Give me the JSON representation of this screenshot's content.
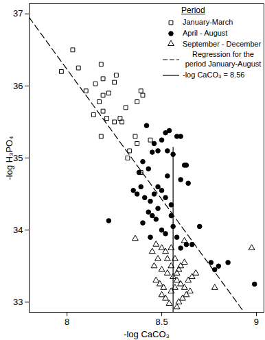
{
  "chart_data": {
    "type": "scatter",
    "x_label": "-log CaCO₃",
    "y_label": "-log H₃PO₄",
    "xlim": [
      7.8,
      9.04
    ],
    "ylim": [
      32.86,
      37.14
    ],
    "xticks": [
      8,
      8.5,
      9
    ],
    "yticks": [
      33,
      34,
      35,
      36,
      37
    ],
    "legend": "top-right",
    "legend_title": "Period",
    "series": [
      {
        "name": "January-March",
        "type": "scatter",
        "marker": "open square",
        "color": "#000000",
        "points": [
          [
            8.03,
            36.5
          ],
          [
            7.97,
            36.2
          ],
          [
            8.06,
            36.25
          ],
          [
            8.1,
            35.93
          ],
          [
            8.15,
            36.03
          ],
          [
            8.18,
            36.3
          ],
          [
            8.19,
            36.1
          ],
          [
            8.25,
            36.05
          ],
          [
            8.22,
            35.9
          ],
          [
            8.19,
            35.87
          ],
          [
            8.17,
            35.78
          ],
          [
            8.19,
            35.65
          ],
          [
            8.14,
            35.6
          ],
          [
            8.21,
            35.55
          ],
          [
            8.25,
            35.5
          ],
          [
            8.28,
            35.55
          ],
          [
            8.31,
            35.7
          ],
          [
            8.37,
            35.78
          ],
          [
            8.4,
            35.87
          ],
          [
            8.39,
            35.93
          ],
          [
            8.36,
            35.3
          ],
          [
            8.37,
            35.2
          ],
          [
            8.33,
            35.1
          ],
          [
            8.18,
            35.3
          ],
          [
            8.29,
            35.5
          ],
          [
            8.32,
            35.0
          ],
          [
            8.39,
            34.8
          ],
          [
            8.44,
            35.25
          ],
          [
            8.26,
            36.15
          ]
        ]
      },
      {
        "name": "April - August",
        "type": "scatter",
        "marker": "circle",
        "color": "#000000",
        "points": [
          [
            8.22,
            34.13
          ],
          [
            8.42,
            35.45
          ],
          [
            8.46,
            35.2
          ],
          [
            8.5,
            35.25
          ],
          [
            8.52,
            35.35
          ],
          [
            8.54,
            35.38
          ],
          [
            8.53,
            35.1
          ],
          [
            8.48,
            35.1
          ],
          [
            8.45,
            35.08
          ],
          [
            8.56,
            35.05
          ],
          [
            8.58,
            35.3
          ],
          [
            8.6,
            35.3
          ],
          [
            8.62,
            34.9
          ],
          [
            8.63,
            34.9
          ],
          [
            8.6,
            34.7
          ],
          [
            8.64,
            34.65
          ],
          [
            8.4,
            34.95
          ],
          [
            8.38,
            34.8
          ],
          [
            8.43,
            34.85
          ],
          [
            8.35,
            34.55
          ],
          [
            8.37,
            34.5
          ],
          [
            8.39,
            34.6
          ],
          [
            8.41,
            34.45
          ],
          [
            8.44,
            34.4
          ],
          [
            8.46,
            34.5
          ],
          [
            8.48,
            34.6
          ],
          [
            8.5,
            34.55
          ],
          [
            8.52,
            34.45
          ],
          [
            8.55,
            34.35
          ],
          [
            8.43,
            34.25
          ],
          [
            8.45,
            34.2
          ],
          [
            8.47,
            34.15
          ],
          [
            8.4,
            34.1
          ],
          [
            8.5,
            34.0
          ],
          [
            8.52,
            33.95
          ],
          [
            8.44,
            33.9
          ],
          [
            8.48,
            34.3
          ],
          [
            8.56,
            34.05
          ],
          [
            8.58,
            33.9
          ],
          [
            8.6,
            33.75
          ],
          [
            8.63,
            33.8
          ],
          [
            8.66,
            33.8
          ],
          [
            8.7,
            34.05
          ],
          [
            8.76,
            33.55
          ],
          [
            8.78,
            33.45
          ],
          [
            8.8,
            33.5
          ],
          [
            8.85,
            33.55
          ],
          [
            8.99,
            33.25
          ],
          [
            8.53,
            34.75
          ],
          [
            8.55,
            34.2
          ]
        ]
      },
      {
        "name": "September - December",
        "type": "scatter",
        "marker": "open triangle",
        "color": "#000000",
        "points": [
          [
            8.36,
            33.88
          ],
          [
            8.47,
            33.8
          ],
          [
            8.5,
            33.75
          ],
          [
            8.52,
            33.7
          ],
          [
            8.48,
            33.6
          ],
          [
            8.46,
            33.5
          ],
          [
            8.5,
            33.45
          ],
          [
            8.53,
            33.4
          ],
          [
            8.47,
            33.3
          ],
          [
            8.49,
            33.25
          ],
          [
            8.51,
            33.2
          ],
          [
            8.5,
            33.1
          ],
          [
            8.52,
            33.05
          ],
          [
            8.55,
            33.15
          ],
          [
            8.57,
            33.2
          ],
          [
            8.58,
            33.3
          ],
          [
            8.6,
            33.25
          ],
          [
            8.62,
            33.2
          ],
          [
            8.64,
            33.3
          ],
          [
            8.58,
            33.4
          ],
          [
            8.6,
            33.5
          ],
          [
            8.62,
            33.55
          ],
          [
            8.59,
            33.45
          ],
          [
            8.56,
            33.35
          ],
          [
            8.55,
            33.5
          ],
          [
            8.57,
            33.6
          ],
          [
            8.63,
            33.1
          ],
          [
            8.65,
            33.15
          ],
          [
            8.66,
            33.35
          ],
          [
            8.61,
            33.05
          ],
          [
            8.59,
            33.0
          ],
          [
            8.54,
            32.98
          ],
          [
            8.58,
            32.93
          ],
          [
            8.53,
            33.6
          ],
          [
            8.55,
            33.75
          ],
          [
            8.62,
            33.85
          ],
          [
            8.45,
            33.7
          ],
          [
            8.78,
            33.2
          ],
          [
            8.68,
            33.4
          ],
          [
            8.975,
            33.75
          ]
        ]
      },
      {
        "name": "Regression for the period January-August",
        "type": "line",
        "line_style": "dashed",
        "color": "#000000",
        "points": [
          [
            7.8,
            36.95
          ],
          [
            8.935,
            32.86
          ]
        ]
      },
      {
        "name": "-log CaCO₃ = 8.56",
        "type": "line",
        "line_style": "solid",
        "color": "#000000",
        "points": [
          [
            8.56,
            32.86
          ],
          [
            8.56,
            35.15
          ]
        ]
      }
    ]
  }
}
